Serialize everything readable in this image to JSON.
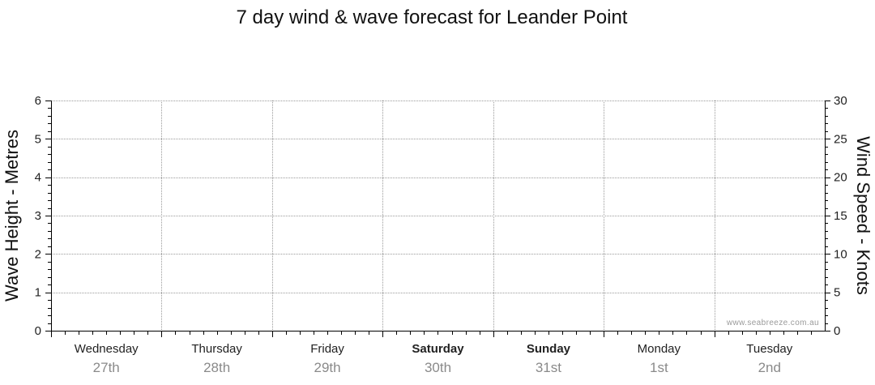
{
  "chart_data": {
    "type": "line",
    "title": "7 day wind & wave forecast for Leander Point",
    "y_left": {
      "label": "Wave Height - Metres",
      "range": [
        0,
        6
      ],
      "ticks": [
        "0",
        "1",
        "2",
        "3",
        "4",
        "5",
        "6"
      ]
    },
    "y_right": {
      "label": "Wind Speed - Knots",
      "range": [
        0,
        30
      ],
      "ticks": [
        "0",
        "5",
        "10",
        "15",
        "20",
        "25",
        "30"
      ]
    },
    "days": [
      {
        "name": "Wednesday",
        "date": "27th",
        "weekend": false
      },
      {
        "name": "Thursday",
        "date": "28th",
        "weekend": false
      },
      {
        "name": "Friday",
        "date": "29th",
        "weekend": false
      },
      {
        "name": "Saturday",
        "date": "30th",
        "weekend": true
      },
      {
        "name": "Sunday",
        "date": "31st",
        "weekend": true
      },
      {
        "name": "Monday",
        "date": "1st",
        "weekend": false
      },
      {
        "name": "Tuesday",
        "date": "2nd",
        "weekend": false
      }
    ],
    "series": [],
    "grid": true,
    "watermark": "www.seabreeze.com.au"
  },
  "colors": {
    "axis": "#000000",
    "grid": "#9a9a9a",
    "date_text": "#8a8a8a"
  }
}
